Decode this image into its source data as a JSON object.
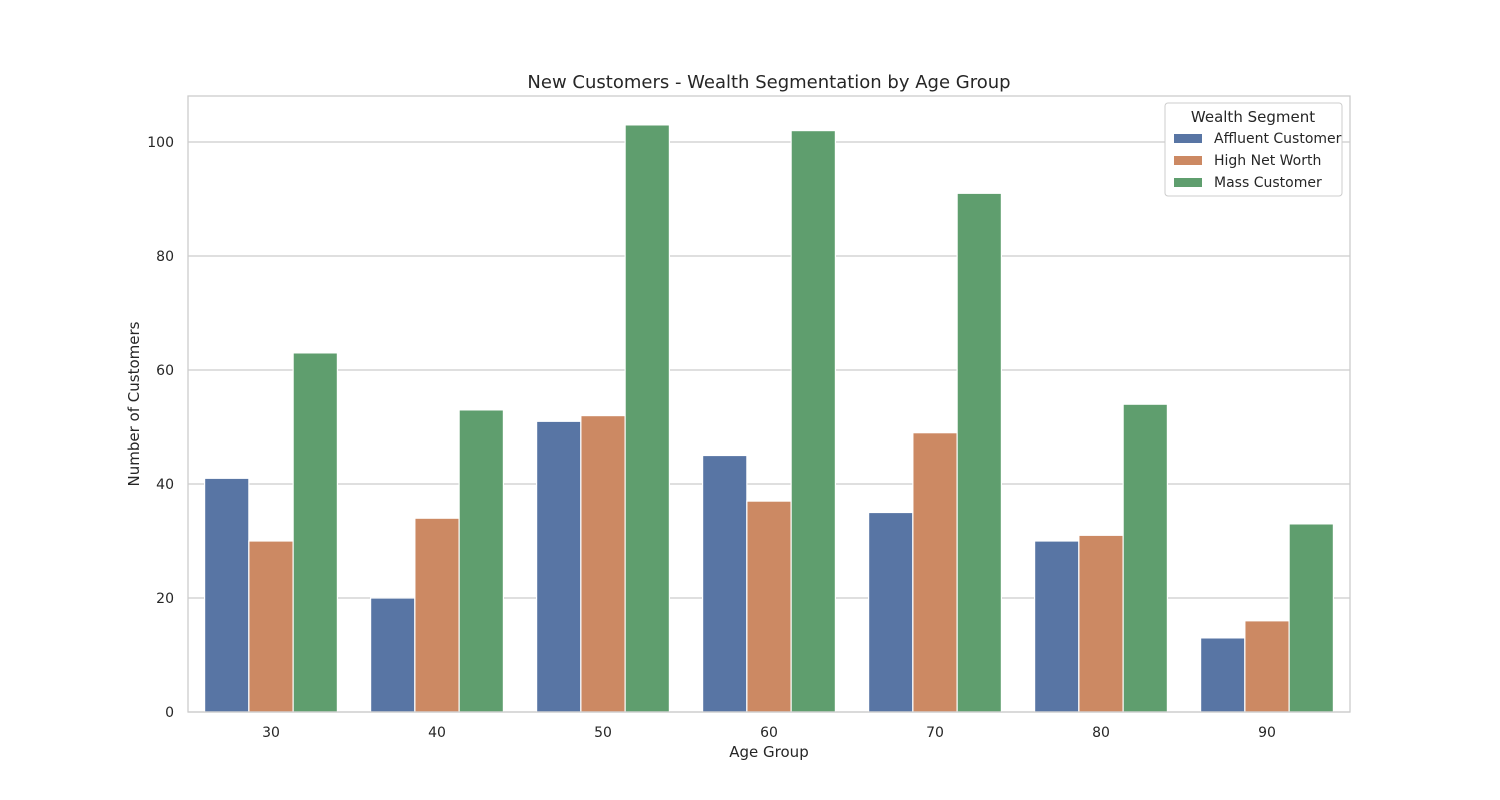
{
  "chart_data": {
    "type": "bar",
    "title": "New Customers - Wealth Segmentation by Age Group",
    "xlabel": "Age Group",
    "ylabel": "Number of Customers",
    "categories": [
      "30",
      "40",
      "50",
      "60",
      "70",
      "80",
      "90"
    ],
    "y_ticks": [
      0,
      20,
      40,
      60,
      80,
      100
    ],
    "ylim": [
      0,
      108
    ],
    "grid": "horizontal",
    "legend": {
      "title": "Wealth Segment",
      "placement": "top-right"
    },
    "series": [
      {
        "name": "Affluent Customer",
        "color": "#5875a4",
        "values": [
          41,
          20,
          51,
          45,
          35,
          30,
          13
        ]
      },
      {
        "name": "High Net Worth",
        "color": "#cc8963",
        "values": [
          30,
          34,
          52,
          37,
          49,
          31,
          16
        ]
      },
      {
        "name": "Mass Customer",
        "color": "#5f9e6e",
        "values": [
          63,
          53,
          103,
          102,
          91,
          54,
          33
        ]
      }
    ]
  }
}
